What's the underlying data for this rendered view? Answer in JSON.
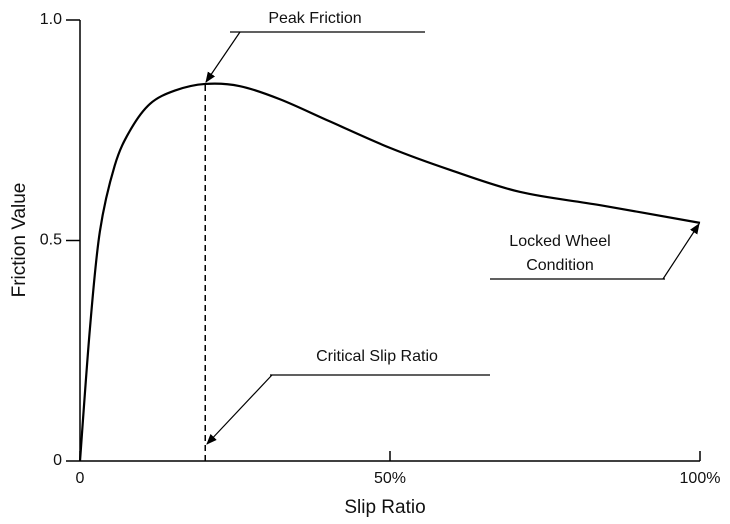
{
  "chart_data": {
    "type": "line",
    "x_label": "Slip Ratio",
    "y_label": "Friction Value",
    "x": [
      0,
      1.6,
      3.2,
      5.6,
      8.1,
      11.3,
      15.3,
      20.2,
      25.8,
      32.3,
      40.3,
      50,
      59.7,
      71,
      83.9,
      100
    ],
    "values": [
      0,
      0.3,
      0.52,
      0.67,
      0.75,
      0.81,
      0.84,
      0.855,
      0.85,
      0.82,
      0.77,
      0.71,
      0.66,
      0.61,
      0.58,
      0.54
    ],
    "color": "#000000",
    "critical_slip": 20.2,
    "xlim": [
      0,
      100
    ],
    "xticks": [
      0,
      {
        "value": 50,
        "label": "50%"
      },
      {
        "value": 100,
        "label": "100%"
      }
    ],
    "ylim": [
      0,
      1
    ],
    "yticks": [
      0,
      0.5,
      {
        "value": 1,
        "label": "1.0"
      }
    ],
    "annotations": [
      {
        "text": "Peak Friction"
      },
      {
        "text": "Critical Slip Ratio"
      },
      {
        "lines": [
          "Locked Wheel",
          "Condition"
        ]
      }
    ]
  }
}
